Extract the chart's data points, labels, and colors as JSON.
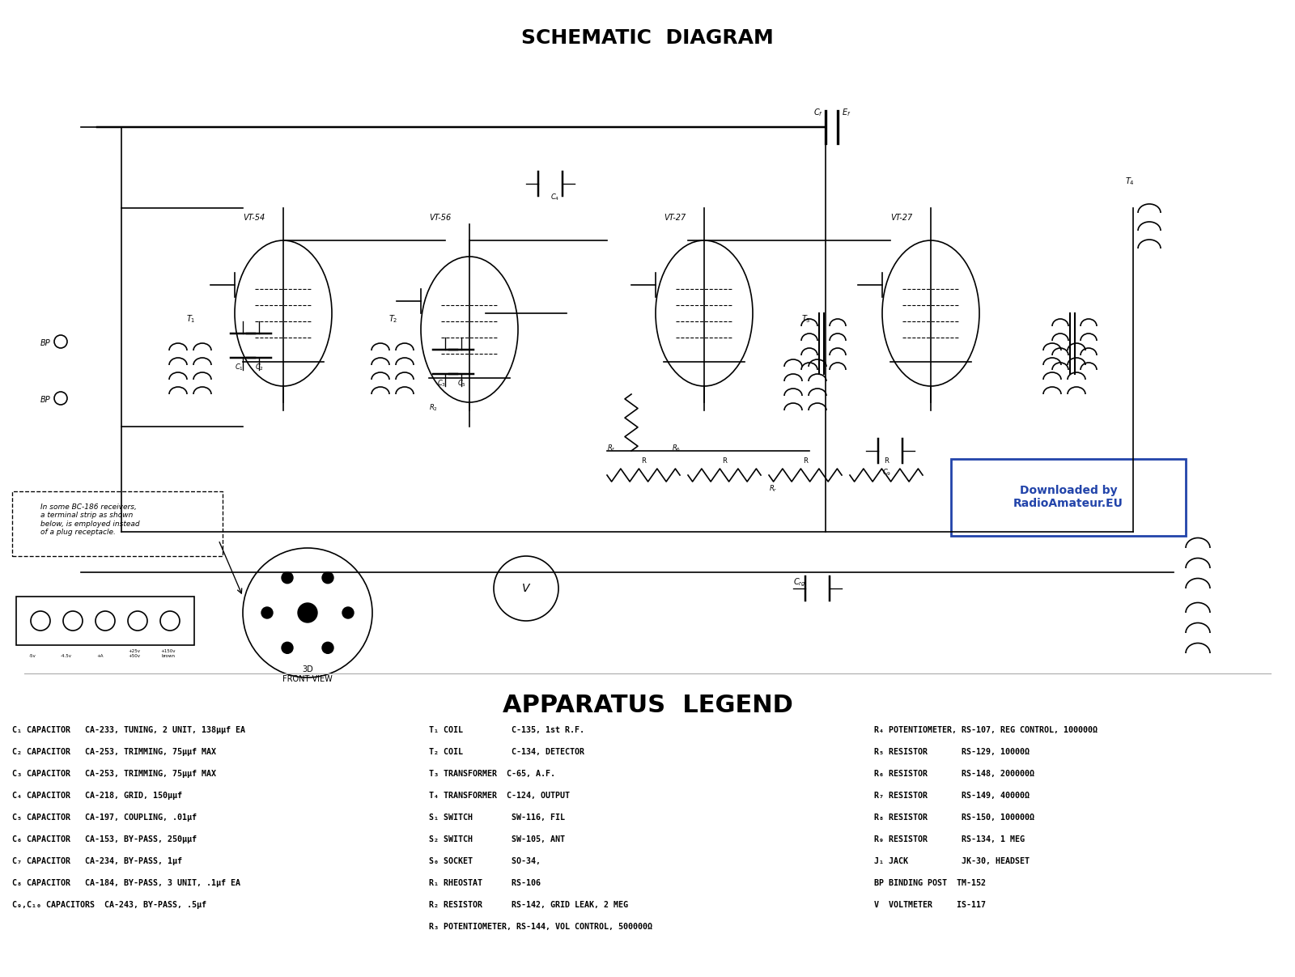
{
  "title": "SCHEMATIC  DIAGRAM",
  "legend_title": "APPARATUS  LEGEND",
  "background_color": "#ffffff",
  "title_fontsize": 18,
  "legend_title_fontsize": 22,
  "watermark_text": "Downloaded by\nRadioAmateur.EU",
  "watermark_box_color": "#2244aa",
  "watermark_text_color": "#2244aa",
  "legend_col1": [
    "C₁ CAPACITOR   CA-233, TUNING, 2 UNIT, 138μμf EA",
    "C₂ CAPACITOR   CA-253, TRIMMING, 75μμf MAX",
    "C₃ CAPACITOR   CA-253, TRIMMING, 75μμf MAX",
    "C₄ CAPACITOR   CA-218, GRID, 150μμf",
    "C₅ CAPACITOR   CA-197, COUPLING, .01μf",
    "C₆ CAPACITOR   CA-153, BY-PASS, 250μμf",
    "C₇ CAPACITOR   CA-234, BY-PASS, 1μf",
    "C₈ CAPACITOR   CA-184, BY-PASS, 3 UNIT, .1μf EA",
    "C₉,C₁₀ CAPACITORS  CA-243, BY-PASS, .5μf"
  ],
  "legend_col2": [
    "T₁ COIL          C-135, 1st R.F.",
    "T₂ COIL          C-134, DETECTOR",
    "T₃ TRANSFORMER  C-65, A.F.",
    "T₄ TRANSFORMER  C-124, OUTPUT",
    "S₁ SWITCH        SW-116, FIL",
    "S₂ SWITCH        SW-105, ANT",
    "S₀ SOCKET        SO-34,",
    "R₁ RHEOSTAT      RS-106",
    "R₂ RESISTOR      RS-142, GRID LEAK, 2 MEG",
    "R₃ POTENTIOMETER, RS-144, VOL CONTROL, 500000Ω"
  ],
  "legend_col3": [
    "R₄ POTENTIOMETER, RS-107, REG CONTROL, 100000Ω",
    "R₅ RESISTOR       RS-129, 10000Ω",
    "R₆ RESISTOR       RS-148, 200000Ω",
    "R₇ RESISTOR       RS-149, 40000Ω",
    "R₈ RESISTOR       RS-150, 100000Ω",
    "R₉ RESISTOR       RS-134, 1 MEG",
    "J₁ JACK           JK-30, HEADSET",
    "BP BINDING POST  TM-152",
    "V  VOLTMETER     IS-117"
  ],
  "tube_labels": [
    "VT-54",
    "VT-56",
    "VT-27",
    "VT-27"
  ],
  "schematic_note": "In some BC-186 receivers,\na terminal strip as shown\nbelow, is employed instead\nof a plug receptacle.",
  "front_view_label": "3D\nFRONT VIEW"
}
